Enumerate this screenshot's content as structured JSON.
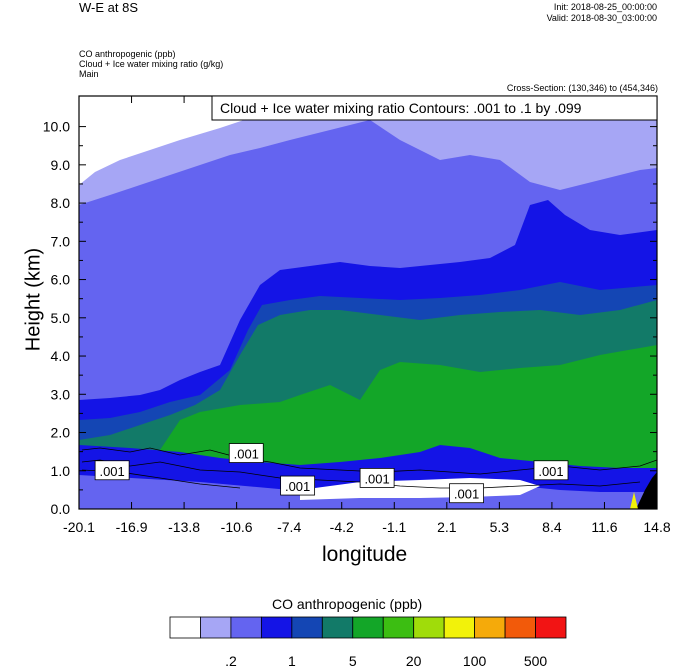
{
  "header": {
    "title": "W-E at 8S",
    "init": "Init: 2018-08-25_00:00:00",
    "valid": "Valid: 2018-08-30_03:00:00",
    "fields": [
      "CO anthropogenic   (ppb)",
      "Cloud + Ice water mixing ratio   (g/kg)",
      "Main"
    ],
    "cross_section": "Cross-Section: (130,346) to (454,346)"
  },
  "contour_box": "Cloud + Ice water mixing ratio Contours: .001 to .1 by .099",
  "chart_data": {
    "type": "heatmap",
    "xlabel": "longitude",
    "ylabel": "Height (km)",
    "xticks": [
      "-20.1",
      "-16.9",
      "-13.8",
      "-10.6",
      "-7.4",
      "-4.2",
      "-1.1",
      "2.1",
      "5.3",
      "8.4",
      "11.6",
      "14.8"
    ],
    "xlim": [
      -20.1,
      14.8
    ],
    "yticks": [
      "0.0",
      "1.0",
      "2.0",
      "3.0",
      "4.0",
      "5.0",
      "6.0",
      "7.0",
      "8.0",
      "9.0",
      "10.0"
    ],
    "ylim": [
      0,
      10.8
    ],
    "contour_labels": [
      {
        "text": ".001",
        "lon": -18.1,
        "km": 1.0
      },
      {
        "text": ".001",
        "lon": -10.0,
        "km": 1.45
      },
      {
        "text": ".001",
        "lon": -6.9,
        "km": 0.6
      },
      {
        "text": ".001",
        "lon": -2.1,
        "km": 0.8
      },
      {
        "text": ".001",
        "lon": 3.3,
        "km": 0.4
      },
      {
        "text": ".001",
        "lon": 8.4,
        "km": 1.0
      }
    ],
    "colorbar": {
      "title": "CO anthropogenic  (ppb)",
      "colors": [
        "#ffffff",
        "#a6a6f5",
        "#6464f0",
        "#1414e6",
        "#1446b4",
        "#127a68",
        "#13a628",
        "#3cbe12",
        "#a0dc0a",
        "#f2f20a",
        "#f5aa0a",
        "#f25a0a",
        "#f21414"
      ],
      "labels": [
        ".2",
        "1",
        "5",
        "20",
        "100",
        "500"
      ],
      "label_boundaries": [
        1,
        3,
        5,
        7,
        9,
        11
      ]
    }
  }
}
